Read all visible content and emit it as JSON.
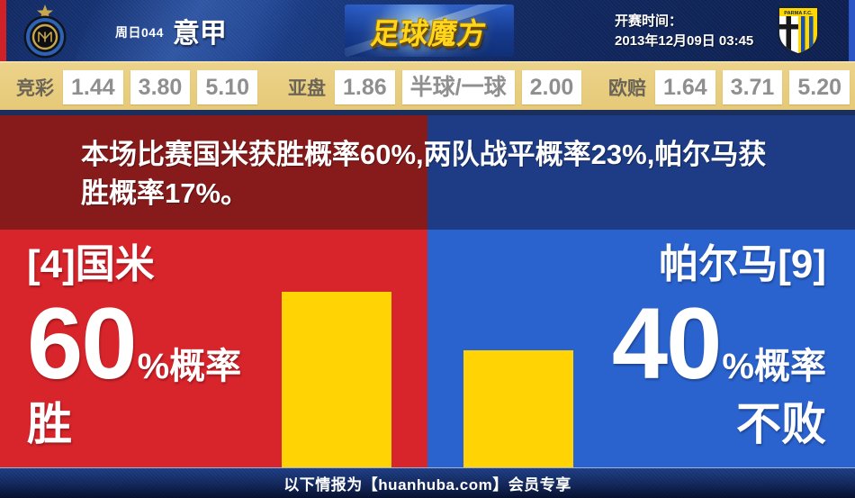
{
  "header": {
    "match_code": "周日044",
    "league": "意甲",
    "site_logo": "足球魔方",
    "kickoff_label": "开赛时间：",
    "kickoff_time": "2013年12月09日 03:45",
    "parma_badge_text": "PARMA F.C."
  },
  "odds": {
    "jingcai": {
      "label": "竞彩",
      "values": [
        "1.44",
        "3.80",
        "5.10"
      ]
    },
    "yapan": {
      "label": "亚盘",
      "values": [
        "1.86",
        "半球/一球",
        "2.00"
      ]
    },
    "oupei": {
      "label": "欧赔",
      "values": [
        "1.64",
        "3.71",
        "5.20"
      ]
    }
  },
  "prediction": {
    "summary": "本场比赛国米获胜概率60%,两队战平概率23%,帕尔马获胜概率17%。",
    "home_win_pct": 60,
    "draw_pct": 23,
    "away_win_pct": 17
  },
  "home": {
    "team": "[4]国米",
    "percent": "60",
    "suffix": "%概率",
    "outcome": "胜",
    "bar_percent": 60
  },
  "away": {
    "team": "帕尔马[9]",
    "percent": "40",
    "suffix": "%概率",
    "outcome": "不败",
    "bar_percent": 40
  },
  "footer": {
    "text": "以下情报为【huanhuba.com】会员专享"
  },
  "colors": {
    "home_dark": "#871b1b",
    "home_bright": "#d8242b",
    "away_dark": "#1e3c85",
    "away_bright": "#2a62ce",
    "bar_yellow": "#ffd304",
    "odds_bg": "#e8cc7e",
    "header_navy": "#132c66",
    "left_edge_red": "#cf2128",
    "right_edge_blue": "#2c55c6"
  }
}
